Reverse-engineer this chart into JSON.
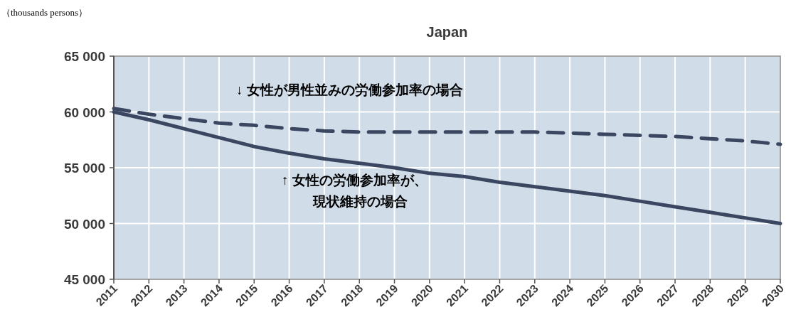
{
  "chart_data": {
    "type": "line",
    "title": "Japan",
    "ylabel": "（thousands persons）",
    "x": [
      2011,
      2012,
      2013,
      2014,
      2015,
      2016,
      2017,
      2018,
      2019,
      2020,
      2021,
      2022,
      2023,
      2024,
      2025,
      2026,
      2027,
      2028,
      2029,
      2030
    ],
    "series": [
      {
        "color": "#3b4660",
        "line_style": "solid",
        "values": [
          60000,
          59300,
          58500,
          57700,
          56900,
          56300,
          55800,
          55400,
          55000,
          54500,
          54200,
          53700,
          53300,
          52900,
          52500,
          52000,
          51500,
          51000,
          50500,
          50000
        ]
      },
      {
        "color": "#3b4660",
        "line_style": "dashed",
        "values": [
          60300,
          59800,
          59400,
          59000,
          58800,
          58500,
          58300,
          58200,
          58200,
          58200,
          58200,
          58200,
          58200,
          58100,
          58000,
          57900,
          57800,
          57600,
          57400,
          57100
        ]
      }
    ],
    "xlim": [
      2011,
      2030
    ],
    "ylim": [
      45000,
      65000
    ],
    "xticks": [
      2011,
      2012,
      2013,
      2014,
      2015,
      2016,
      2017,
      2018,
      2019,
      2020,
      2021,
      2022,
      2023,
      2024,
      2025,
      2026,
      2027,
      2028,
      2029,
      2030
    ],
    "yticks": [
      {
        "value": 45000,
        "label": "45 000"
      },
      {
        "value": 50000,
        "label": "50 000"
      },
      {
        "value": 55000,
        "label": "55 000"
      },
      {
        "value": 60000,
        "label": "60 000"
      },
      {
        "value": 65000,
        "label": "65 000"
      }
    ],
    "grid": true,
    "marker": "none",
    "annotations": [
      "↓  女性が男性並みの労働参加率の場合",
      "↑  女性の労働参加率が、",
      "現状維持の場合"
    ]
  }
}
